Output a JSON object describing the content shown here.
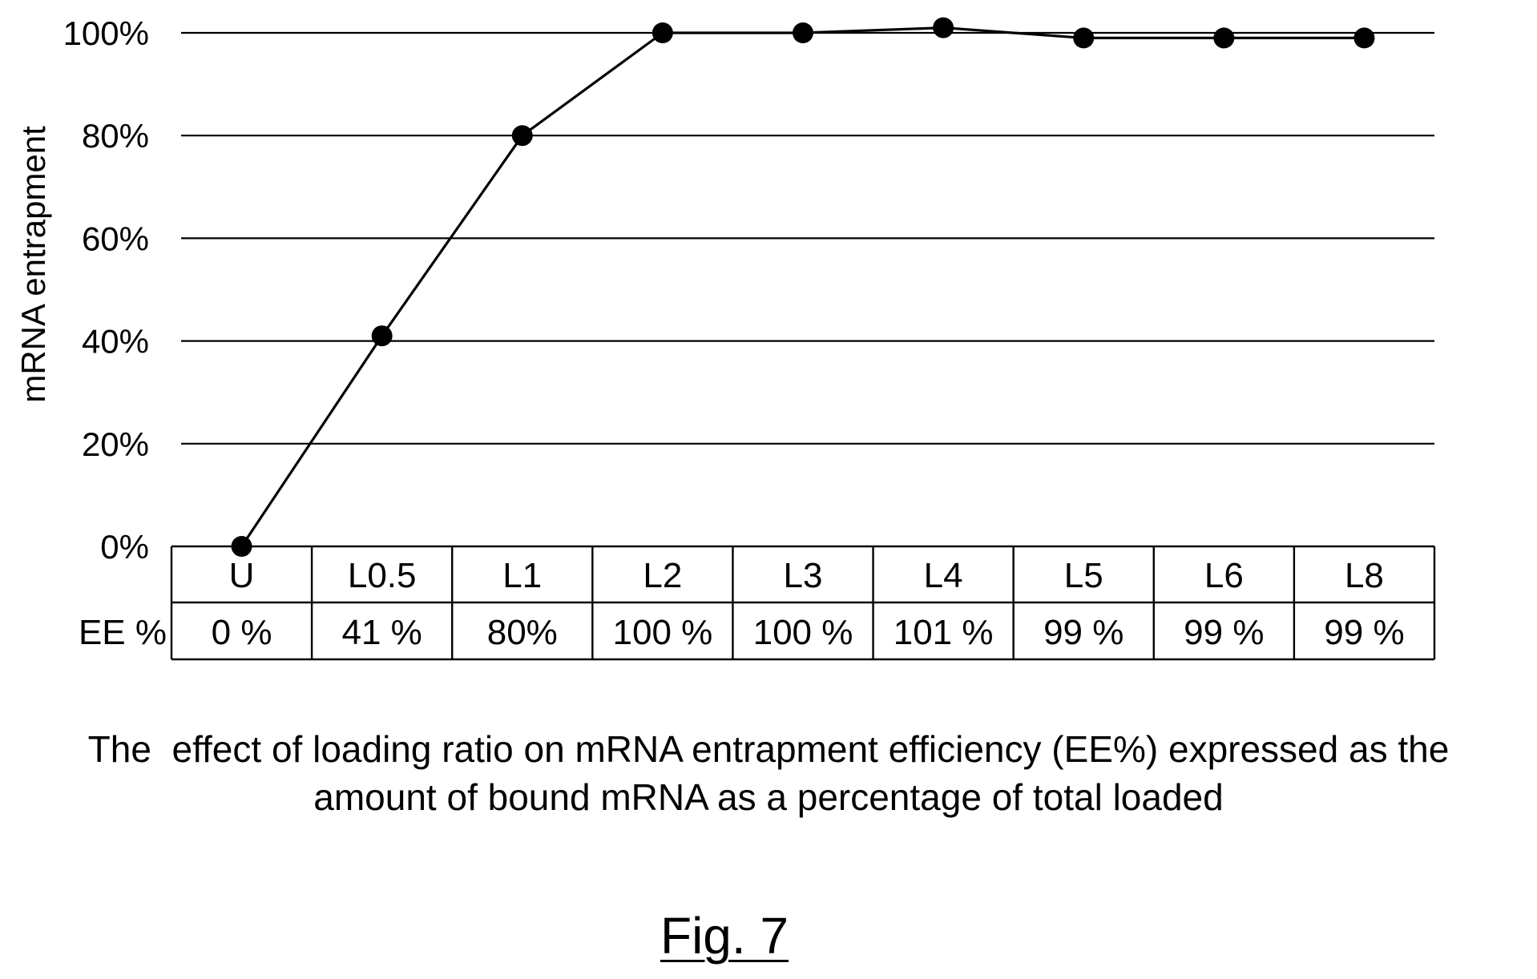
{
  "chart_data": {
    "type": "line",
    "title": "",
    "xlabel": "",
    "ylabel": "mRNA entrapment",
    "ylim": [
      0,
      100
    ],
    "y_ticks": [
      "0%",
      "20%",
      "40%",
      "60%",
      "80%",
      "100%"
    ],
    "grid": true,
    "categories": [
      "U",
      "L0.5",
      "L1",
      "L2",
      "L3",
      "L4",
      "L5",
      "L6",
      "L8"
    ],
    "series": [
      {
        "values": [
          0,
          41,
          80,
          100,
          100,
          101,
          99,
          99,
          99
        ]
      }
    ],
    "table": {
      "row_header": "EE %",
      "cells": [
        "0 %",
        "41 %",
        "80%",
        "100 %",
        "100 %",
        "101 %",
        "99 %",
        "99 %",
        "99 %"
      ]
    },
    "colors": {
      "line": "#000000",
      "marker": "#000000",
      "grid": "#000000"
    }
  },
  "caption": {
    "line1": "The  effect of loading ratio on mRNA entrapment efficiency (EE%) expressed as the",
    "line2": "amount of bound mRNA as a percentage of total loaded"
  },
  "figure_label": "Fig. 7"
}
